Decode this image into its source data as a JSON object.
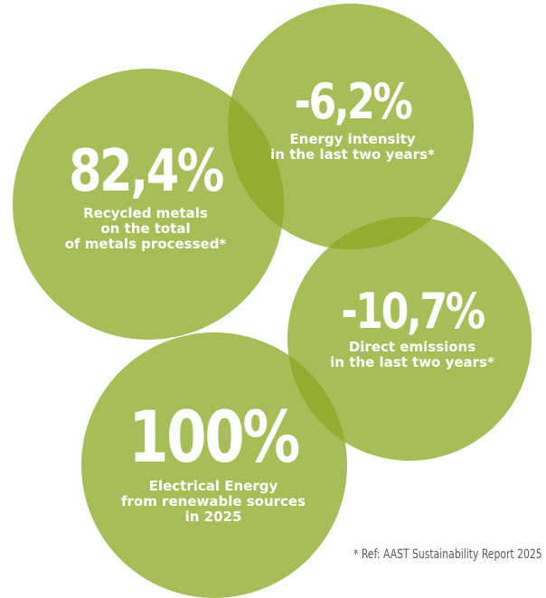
{
  "colors": {
    "circle_fill": "#8ba824",
    "text": "#ffffff",
    "footnote": "#5a5a5a"
  },
  "stats": [
    {
      "value": "82,4%",
      "label_lines": [
        "Recycled metals",
        "on the total",
        "of metals processed*"
      ]
    },
    {
      "value": "-6,2%",
      "label_lines": [
        "Energy intensity",
        "in the last two years*"
      ]
    },
    {
      "value": "-10,7%",
      "label_lines": [
        "Direct emissions",
        "in the last two years*"
      ]
    },
    {
      "value": "100%",
      "label_lines": [
        "Electrical Energy",
        "from renewable sources",
        "in 2025"
      ]
    }
  ],
  "footnote": "* Ref: AAST Sustainability Report 2025"
}
